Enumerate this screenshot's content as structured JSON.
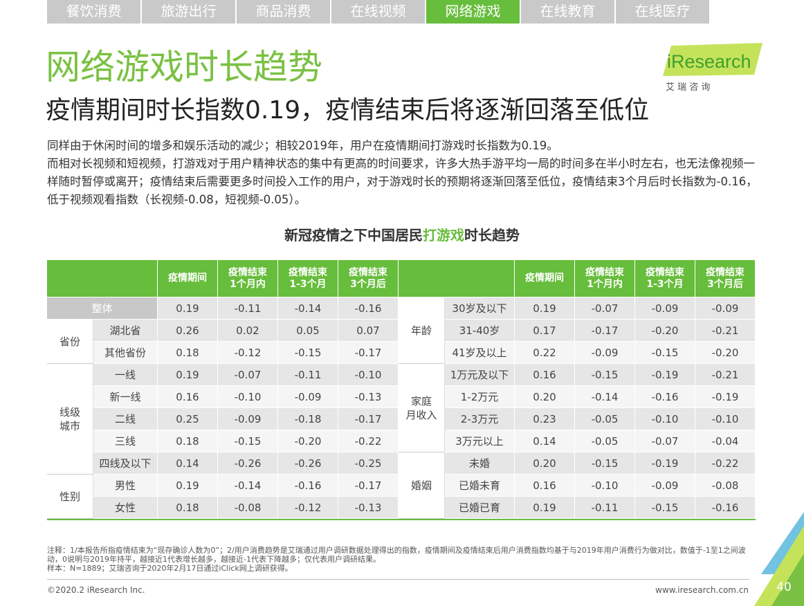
{
  "tabs": {
    "items": [
      "餐饮消费",
      "旅游出行",
      "商品消费",
      "在线视频",
      "网络游戏",
      "在线教育",
      "在线医疗"
    ],
    "active": 4
  },
  "logo": {
    "brand": "iResearch",
    "sub": "艾 瑞 咨 询"
  },
  "header": {
    "title": "网络游戏时长趋势",
    "subtitle": "疫情期间时长指数0.19，疫情结束后将逐渐回落至低位"
  },
  "body": {
    "paragraphs": [
      "同样由于休闲时间的增多和娱乐活动的减少；相较2019年，用户在疫情期间打游戏时长指数为0.19。",
      "而相对长视频和短视频，打游戏对于用户精神状态的集中有更高的时间要求，许多大热手游平均一局的时间多在半小时左右，也无法像视频一样随时暂停或离开；疫情结束后需要更多时间投入工作的用户，对于游戏时长的预期将逐渐回落至低位，疫情结束3个月后时长指数为-0.16，低于视频观看指数（长视频-0.08，短视频-0.05）。"
    ]
  },
  "table_title": {
    "before": "新冠疫情之下中国居民",
    "highlight": "打游戏",
    "after": "时长趋势"
  },
  "table": {
    "columns": [
      [
        "疫情期间"
      ],
      [
        "疫情结束",
        "1个月内"
      ],
      [
        "疫情结束",
        "1-3个月"
      ],
      [
        "疫情结束",
        "3个月后"
      ]
    ],
    "left": [
      {
        "name": [
          "整体"
        ],
        "rows": [
          {
            "values": [
              "0.19",
              "-0.11",
              "-0.14",
              "-0.16"
            ]
          }
        ]
      },
      {
        "name": [
          "省份"
        ],
        "rows": [
          {
            "label": "湖北省",
            "values": [
              "0.26",
              "0.02",
              "0.05",
              "0.07"
            ]
          },
          {
            "label": "其他省份",
            "values": [
              "0.18",
              "-0.12",
              "-0.15",
              "-0.17"
            ]
          }
        ]
      },
      {
        "name": [
          "线级",
          "城市"
        ],
        "rows": [
          {
            "label": "一线",
            "values": [
              "0.19",
              "-0.07",
              "-0.11",
              "-0.10"
            ]
          },
          {
            "label": "新一线",
            "values": [
              "0.16",
              "-0.10",
              "-0.09",
              "-0.13"
            ]
          },
          {
            "label": "二线",
            "values": [
              "0.25",
              "-0.09",
              "-0.18",
              "-0.17"
            ]
          },
          {
            "label": "三线",
            "values": [
              "0.18",
              "-0.15",
              "-0.20",
              "-0.22"
            ]
          },
          {
            "label": "四线及以下",
            "values": [
              "0.14",
              "-0.26",
              "-0.26",
              "-0.25"
            ]
          }
        ]
      },
      {
        "name": [
          "性别"
        ],
        "rows": [
          {
            "label": "男性",
            "values": [
              "0.19",
              "-0.14",
              "-0.16",
              "-0.17"
            ]
          },
          {
            "label": "女性",
            "values": [
              "0.18",
              "-0.08",
              "-0.12",
              "-0.13"
            ]
          }
        ]
      }
    ],
    "right": [
      {
        "name": [
          "年龄"
        ],
        "rows": [
          {
            "label": "30岁及以下",
            "values": [
              "0.19",
              "-0.07",
              "-0.09",
              "-0.09"
            ]
          },
          {
            "label": "31-40岁",
            "values": [
              "0.17",
              "-0.17",
              "-0.20",
              "-0.21"
            ]
          },
          {
            "label": "41岁及以上",
            "values": [
              "0.22",
              "-0.09",
              "-0.15",
              "-0.20"
            ]
          }
        ]
      },
      {
        "name": [
          "家庭",
          "月收入"
        ],
        "rows": [
          {
            "label": "1万元及以下",
            "values": [
              "0.16",
              "-0.15",
              "-0.19",
              "-0.21"
            ]
          },
          {
            "label": "1-2万元",
            "values": [
              "0.20",
              "-0.14",
              "-0.16",
              "-0.19"
            ]
          },
          {
            "label": "2-3万元",
            "values": [
              "0.23",
              "-0.05",
              "-0.10",
              "-0.10"
            ]
          },
          {
            "label": "3万元以上",
            "values": [
              "0.14",
              "-0.05",
              "-0.07",
              "-0.04"
            ]
          }
        ]
      },
      {
        "name": [
          "婚姻"
        ],
        "rows": [
          {
            "label": "未婚",
            "values": [
              "0.20",
              "-0.15",
              "-0.19",
              "-0.22"
            ]
          },
          {
            "label": "已婚未育",
            "values": [
              "0.16",
              "-0.10",
              "-0.09",
              "-0.08"
            ]
          },
          {
            "label": "已婚已育",
            "values": [
              "0.19",
              "-0.11",
              "-0.15",
              "-0.16"
            ]
          }
        ]
      }
    ]
  },
  "notes": [
    "注释：1/本报告所指疫情结束为“现存确诊人数为0”；2/用户消费趋势是艾瑞通过用户调研数据处理得出的指数，疫情期间及疫情结束后用户消费指数均基于与2019年用户消费行为做对比，数值于-1至1之间波动，0说明与2019年持平，越接近1代表增长越多，越接近-1代表下降越多；仅代表用户调研结果。",
    "样本：N=1889；艾瑞咨询于2020年2月17日通过iClick网上调研获得。"
  ],
  "footer": {
    "copyright": "©2020.2 iResearch Inc.",
    "url": "www.iresearch.com.cn",
    "page": "40"
  }
}
